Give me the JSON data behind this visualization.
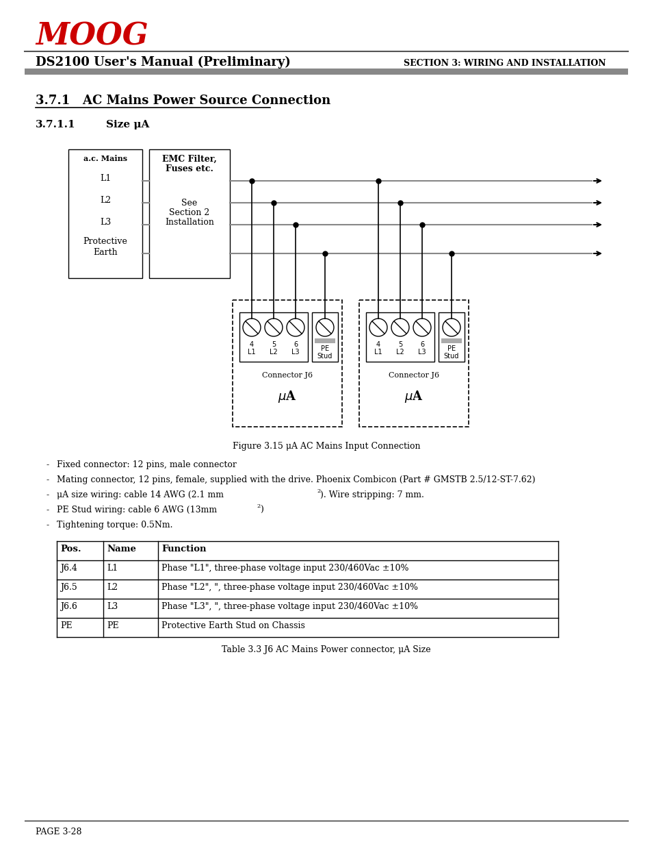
{
  "title_left": "DS2100 User's Manual (Preliminary)",
  "title_right": "SECTION 3: WIRING AND INSTALLATION",
  "moog_color": "#cc0000",
  "moog_text": "MOOG",
  "section_title": "3.7.1   AC Mains Power Source Connection",
  "subsection_title": "3.7.1.1",
  "subsection_title2": "Size μA",
  "figure_caption": "Figure 3.15 μA AC Mains Input Connection",
  "bullet_points": [
    "Fixed connector: 12 pins, male connector",
    "Mating connector, 12 pins, female, supplied with the drive. Phoenix Combicon (Part # GMSTB 2.5/12-ST-7.62)",
    "μA size wiring: cable 14 AWG (2.1 mm²). Wire stripping: 7 mm.",
    "PE Stud wiring: cable 6 AWG (13mm²)",
    "Tightening torque: 0.5Nm."
  ],
  "table_headers": [
    "Pos.",
    "Name",
    "Function"
  ],
  "table_rows": [
    [
      "J6.4",
      "L1",
      "Phase \"L1\", three-phase voltage input 230/460Vac ±10%"
    ],
    [
      "J6.5",
      "L2",
      "Phase \"L2\", \", three-phase voltage input 230/460Vac ±10%"
    ],
    [
      "J6.6",
      "L3",
      "Phase \"L3\", \", three-phase voltage input 230/460Vac ±10%"
    ],
    [
      "PE",
      "PE",
      "Protective Earth Stud on Chassis"
    ]
  ],
  "table_caption": "Table 3.3 J6 AC Mains Power connector, μA Size",
  "page_footer": "PAGE 3-28",
  "line_color": "#888888",
  "background": "#ffffff"
}
